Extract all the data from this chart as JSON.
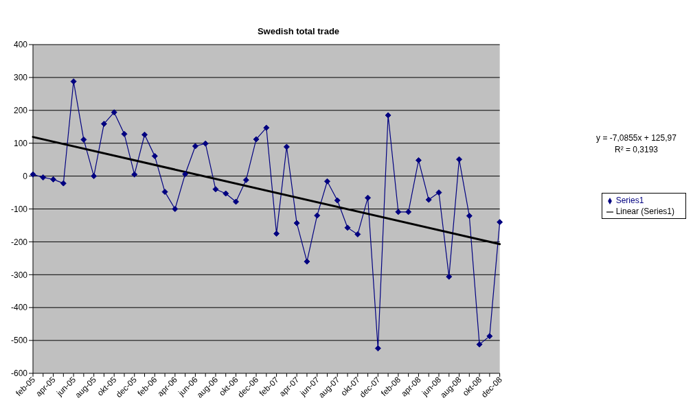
{
  "chart_data": {
    "type": "line",
    "title": "Swedish total trade",
    "categories": [
      "feb-05",
      null,
      "apr-05",
      null,
      "jun-05",
      null,
      "aug-05",
      null,
      "okt-05",
      null,
      "dec-05",
      null,
      "feb-06",
      null,
      "apr-06",
      null,
      "jun-06",
      null,
      "aug-06",
      null,
      "okt-06",
      null,
      "dec-06",
      null,
      "feb-07",
      null,
      "apr-07",
      null,
      "jun-07",
      null,
      "aug-07",
      null,
      "okt-07",
      null,
      "dec-07",
      null,
      "feb-08",
      null,
      "apr-08",
      null,
      "jun-08",
      null,
      "aug-08",
      null,
      "okt-08",
      null,
      "dec-08"
    ],
    "series": [
      {
        "name": "Series1",
        "color": "#000080",
        "marker": "diamond",
        "values": [
          5,
          -4,
          -10,
          -22,
          288,
          111,
          0,
          159,
          194,
          128,
          5,
          126,
          61,
          -48,
          -100,
          6,
          91,
          99,
          -40,
          -53,
          -78,
          -12,
          112,
          147,
          -175,
          89,
          -143,
          -260,
          -120,
          -16,
          -74,
          -157,
          -177,
          -66,
          -524,
          185,
          -109,
          -109,
          48,
          -72,
          -50,
          -306,
          51,
          -121,
          -512,
          -487,
          -140
        ]
      },
      {
        "name": "Linear (Series1)",
        "type": "line",
        "color": "#000000",
        "marker": "none",
        "values": [
          119,
          null,
          null,
          null,
          null,
          null,
          null,
          null,
          null,
          null,
          null,
          null,
          null,
          null,
          null,
          null,
          null,
          null,
          null,
          null,
          null,
          null,
          null,
          null,
          null,
          null,
          null,
          null,
          null,
          null,
          null,
          null,
          null,
          null,
          null,
          null,
          null,
          null,
          null,
          null,
          null,
          null,
          null,
          null,
          null,
          null,
          -207
        ]
      }
    ],
    "ylim": [
      -600,
      400
    ],
    "yticks": [
      -600,
      -500,
      -400,
      -300,
      -200,
      -100,
      0,
      100,
      200,
      300,
      400
    ],
    "grid": "y",
    "legend": "right",
    "annotations": [
      "y = -7,0855x + 125,97",
      "R² = 0,3193"
    ]
  }
}
